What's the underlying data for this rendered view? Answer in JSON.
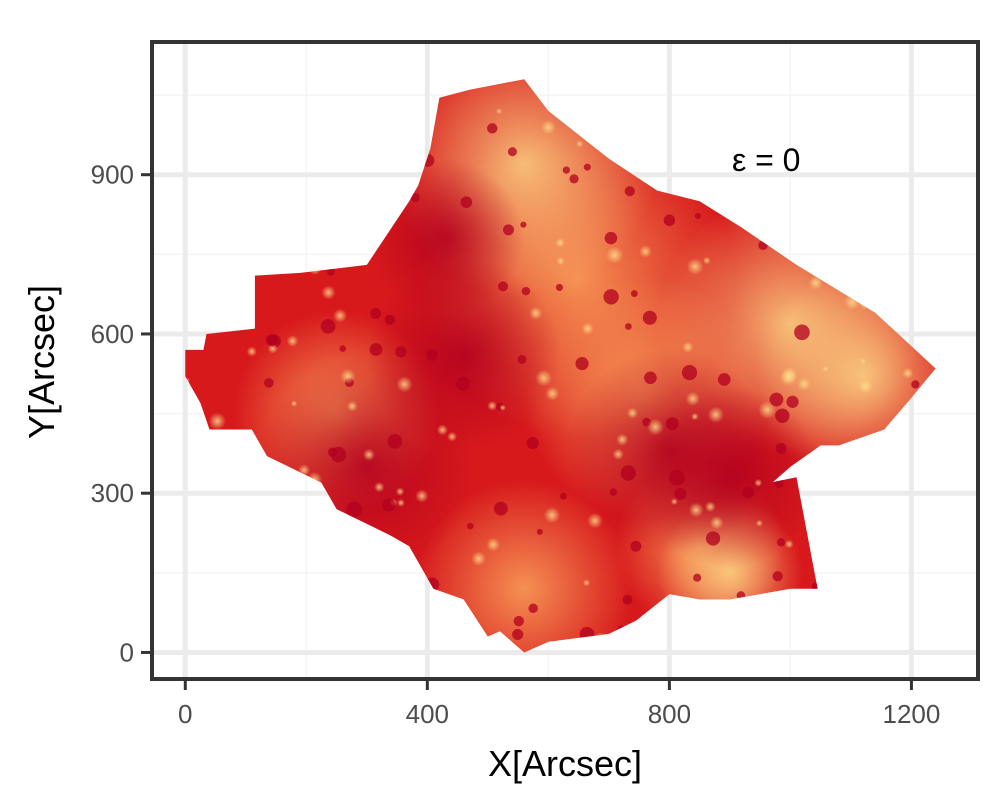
{
  "chart_data": {
    "type": "heatmap",
    "title": "",
    "xlabel": "X[Arcsec]",
    "ylabel": "Y[Arcsec]",
    "xlim": [
      -55,
      1310
    ],
    "ylim": [
      -50,
      1150
    ],
    "x_ticks": [
      0,
      400,
      800,
      1200
    ],
    "y_ticks": [
      0,
      300,
      600,
      900
    ],
    "x_tick_labels": [
      "0",
      "400",
      "800",
      "1200"
    ],
    "y_tick_labels": [
      "0",
      "300",
      "600",
      "900"
    ],
    "grid": true,
    "annotation": {
      "text": "ε = 0",
      "x": 960,
      "y": 930
    },
    "colormap": [
      "#b2001f",
      "#d7191c",
      "#f46d43",
      "#fdae61",
      "#fee08b"
    ],
    "colors": {
      "panel_border": "#333333",
      "grid_major": "#ebebeb",
      "grid_minor": "#f4f4f4"
    },
    "region": [
      [
        0,
        570
      ],
      [
        30,
        570
      ],
      [
        35,
        600
      ],
      [
        115,
        610
      ],
      [
        115,
        710
      ],
      [
        190,
        715
      ],
      [
        300,
        730
      ],
      [
        370,
        850
      ],
      [
        385,
        880
      ],
      [
        405,
        950
      ],
      [
        420,
        1045
      ],
      [
        470,
        1060
      ],
      [
        560,
        1080
      ],
      [
        600,
        1020
      ],
      [
        700,
        930
      ],
      [
        780,
        870
      ],
      [
        850,
        850
      ],
      [
        920,
        800
      ],
      [
        1010,
        730
      ],
      [
        1140,
        640
      ],
      [
        1240,
        535
      ],
      [
        1200,
        480
      ],
      [
        1155,
        420
      ],
      [
        1080,
        390
      ],
      [
        1050,
        390
      ],
      [
        1000,
        350
      ],
      [
        950,
        300
      ],
      [
        930,
        270
      ],
      [
        875,
        205
      ],
      [
        850,
        190
      ],
      [
        830,
        180
      ],
      [
        780,
        175
      ],
      [
        770,
        190
      ],
      [
        840,
        290
      ],
      [
        1010,
        330
      ],
      [
        1045,
        120
      ],
      [
        1000,
        120
      ],
      [
        900,
        100
      ],
      [
        850,
        100
      ],
      [
        800,
        110
      ],
      [
        745,
        60
      ],
      [
        700,
        35
      ],
      [
        600,
        20
      ],
      [
        560,
        0
      ],
      [
        520,
        40
      ],
      [
        500,
        30
      ],
      [
        460,
        100
      ],
      [
        410,
        120
      ],
      [
        370,
        200
      ],
      [
        340,
        220
      ],
      [
        250,
        270
      ],
      [
        225,
        320
      ],
      [
        135,
        370
      ],
      [
        110,
        420
      ],
      [
        40,
        420
      ],
      [
        25,
        470
      ],
      [
        0,
        520
      ]
    ]
  }
}
